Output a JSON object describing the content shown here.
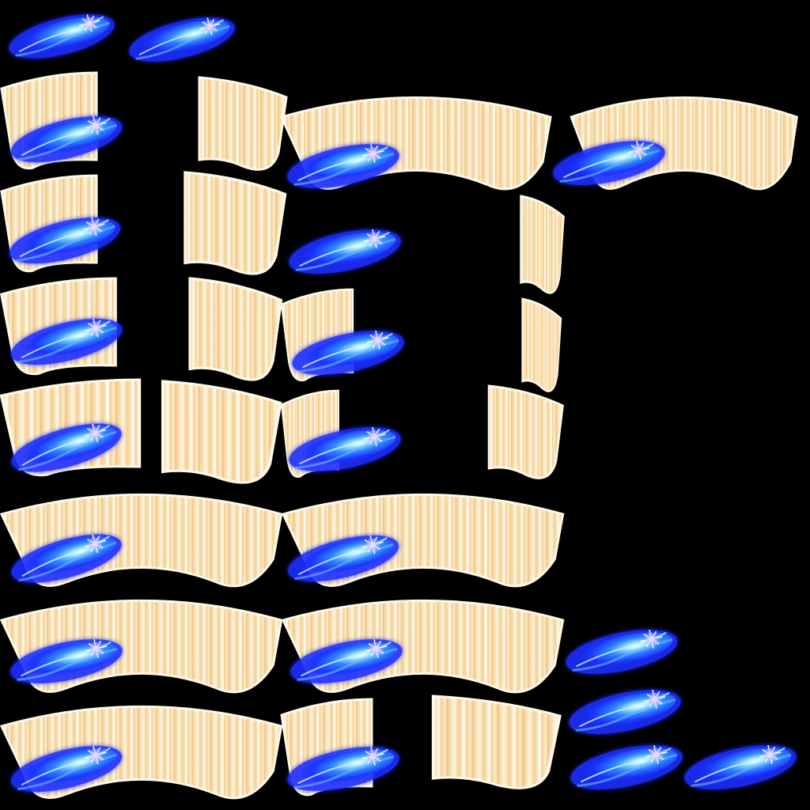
{
  "sprite_sheet": {
    "background": "#000000",
    "colors": {
      "arc_fill": "#f7e2b2",
      "arc_edge": "#fffaf0",
      "arc_stripe_warm": "#f5c98c",
      "arc_stripe_light": "#fffdf5",
      "arc_accent_pink": "#ff9fb8",
      "flare_outer": "#1a2cff",
      "flare_mid": "#2f7dff",
      "flare_core": "#8fe4ff",
      "flare_highlight": "#ffffff",
      "flare_violet": "#a86bff"
    },
    "icons": [
      "blue-energy-flare",
      "golden-arc-swoosh"
    ]
  }
}
